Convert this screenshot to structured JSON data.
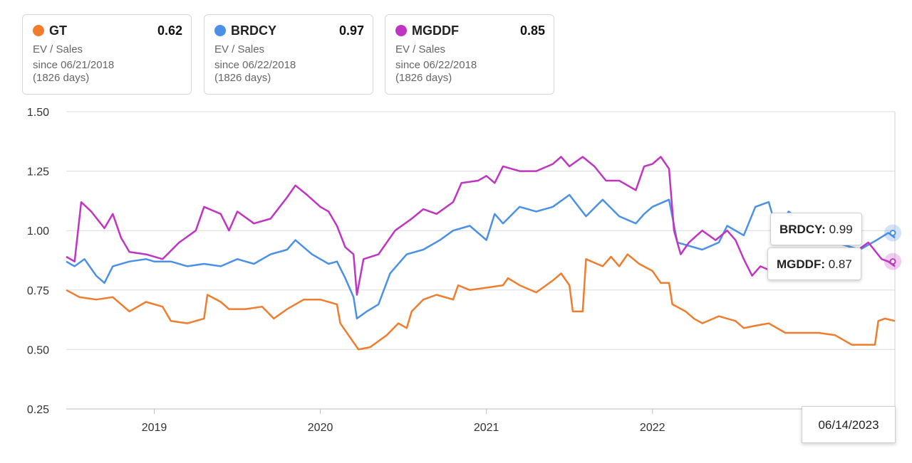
{
  "cards": [
    {
      "ticker": "GT",
      "value": "0.62",
      "metric": "EV / Sales",
      "since": "since 06/21/2018",
      "days": "(1826 days)",
      "color": "#EF7D2D"
    },
    {
      "ticker": "BRDCY",
      "value": "0.97",
      "metric": "EV / Sales",
      "since": "since 06/22/2018",
      "days": "(1826 days)",
      "color": "#4A90E8"
    },
    {
      "ticker": "MGDDF",
      "value": "0.85",
      "metric": "EV / Sales",
      "since": "since 06/22/2018",
      "days": "(1826 days)",
      "color": "#C034C3"
    }
  ],
  "tooltip": {
    "brdcy_label": "BRDCY:",
    "brdcy_value": "0.99",
    "mgddf_label": "MGDDF:",
    "mgddf_value": "0.87",
    "date": "06/14/2023"
  },
  "chart_data": {
    "type": "line",
    "ylim": [
      0.25,
      1.5
    ],
    "yticks": [
      "1.50",
      "1.25",
      "1.00",
      "0.75",
      "0.50",
      "0.25"
    ],
    "ytick_values": [
      1.5,
      1.25,
      1.0,
      0.75,
      0.5,
      0.25
    ],
    "xlim": [
      2018.47,
      2023.46
    ],
    "xticks": [
      "2019",
      "2020",
      "2021",
      "2022"
    ],
    "xtick_values": [
      2019,
      2020,
      2021,
      2022
    ],
    "grid": true,
    "series": [
      {
        "name": "GT",
        "color": "#EF7D2D",
        "points": [
          [
            2018.47,
            0.75
          ],
          [
            2018.55,
            0.72
          ],
          [
            2018.65,
            0.71
          ],
          [
            2018.75,
            0.72
          ],
          [
            2018.85,
            0.66
          ],
          [
            2018.95,
            0.7
          ],
          [
            2019.05,
            0.68
          ],
          [
            2019.1,
            0.62
          ],
          [
            2019.2,
            0.61
          ],
          [
            2019.3,
            0.63
          ],
          [
            2019.32,
            0.73
          ],
          [
            2019.4,
            0.7
          ],
          [
            2019.45,
            0.67
          ],
          [
            2019.55,
            0.67
          ],
          [
            2019.65,
            0.68
          ],
          [
            2019.72,
            0.63
          ],
          [
            2019.8,
            0.67
          ],
          [
            2019.9,
            0.71
          ],
          [
            2020.0,
            0.71
          ],
          [
            2020.1,
            0.69
          ],
          [
            2020.12,
            0.61
          ],
          [
            2020.18,
            0.55
          ],
          [
            2020.23,
            0.5
          ],
          [
            2020.3,
            0.51
          ],
          [
            2020.4,
            0.56
          ],
          [
            2020.47,
            0.61
          ],
          [
            2020.52,
            0.59
          ],
          [
            2020.55,
            0.66
          ],
          [
            2020.62,
            0.71
          ],
          [
            2020.7,
            0.73
          ],
          [
            2020.8,
            0.71
          ],
          [
            2020.83,
            0.77
          ],
          [
            2020.9,
            0.75
          ],
          [
            2021.0,
            0.76
          ],
          [
            2021.1,
            0.77
          ],
          [
            2021.13,
            0.8
          ],
          [
            2021.2,
            0.77
          ],
          [
            2021.3,
            0.74
          ],
          [
            2021.4,
            0.79
          ],
          [
            2021.45,
            0.82
          ],
          [
            2021.5,
            0.77
          ],
          [
            2021.52,
            0.66
          ],
          [
            2021.58,
            0.66
          ],
          [
            2021.6,
            0.88
          ],
          [
            2021.7,
            0.85
          ],
          [
            2021.75,
            0.89
          ],
          [
            2021.8,
            0.85
          ],
          [
            2021.85,
            0.9
          ],
          [
            2021.92,
            0.86
          ],
          [
            2022.0,
            0.83
          ],
          [
            2022.05,
            0.78
          ],
          [
            2022.1,
            0.78
          ],
          [
            2022.12,
            0.69
          ],
          [
            2022.2,
            0.66
          ],
          [
            2022.25,
            0.63
          ],
          [
            2022.3,
            0.61
          ],
          [
            2022.4,
            0.64
          ],
          [
            2022.5,
            0.62
          ],
          [
            2022.55,
            0.59
          ],
          [
            2022.62,
            0.6
          ],
          [
            2022.7,
            0.61
          ],
          [
            2022.8,
            0.57
          ],
          [
            2022.9,
            0.57
          ],
          [
            2023.0,
            0.57
          ],
          [
            2023.1,
            0.56
          ],
          [
            2023.2,
            0.52
          ],
          [
            2023.3,
            0.52
          ],
          [
            2023.34,
            0.52
          ],
          [
            2023.36,
            0.62
          ],
          [
            2023.4,
            0.63
          ],
          [
            2023.46,
            0.62
          ]
        ]
      },
      {
        "name": "BRDCY",
        "color": "#4A90E8",
        "points": [
          [
            2018.47,
            0.87
          ],
          [
            2018.52,
            0.85
          ],
          [
            2018.58,
            0.88
          ],
          [
            2018.65,
            0.81
          ],
          [
            2018.7,
            0.78
          ],
          [
            2018.75,
            0.85
          ],
          [
            2018.85,
            0.87
          ],
          [
            2018.95,
            0.88
          ],
          [
            2019.0,
            0.87
          ],
          [
            2019.1,
            0.87
          ],
          [
            2019.2,
            0.85
          ],
          [
            2019.3,
            0.86
          ],
          [
            2019.4,
            0.85
          ],
          [
            2019.5,
            0.88
          ],
          [
            2019.6,
            0.86
          ],
          [
            2019.7,
            0.9
          ],
          [
            2019.8,
            0.92
          ],
          [
            2019.85,
            0.96
          ],
          [
            2019.95,
            0.9
          ],
          [
            2020.05,
            0.86
          ],
          [
            2020.1,
            0.87
          ],
          [
            2020.15,
            0.8
          ],
          [
            2020.2,
            0.72
          ],
          [
            2020.22,
            0.63
          ],
          [
            2020.28,
            0.66
          ],
          [
            2020.35,
            0.69
          ],
          [
            2020.42,
            0.82
          ],
          [
            2020.52,
            0.9
          ],
          [
            2020.62,
            0.92
          ],
          [
            2020.72,
            0.96
          ],
          [
            2020.8,
            1.0
          ],
          [
            2020.9,
            1.02
          ],
          [
            2021.0,
            0.96
          ],
          [
            2021.05,
            1.07
          ],
          [
            2021.1,
            1.03
          ],
          [
            2021.2,
            1.1
          ],
          [
            2021.3,
            1.08
          ],
          [
            2021.4,
            1.1
          ],
          [
            2021.5,
            1.15
          ],
          [
            2021.6,
            1.06
          ],
          [
            2021.7,
            1.13
          ],
          [
            2021.8,
            1.06
          ],
          [
            2021.9,
            1.03
          ],
          [
            2021.95,
            1.07
          ],
          [
            2022.0,
            1.1
          ],
          [
            2022.1,
            1.13
          ],
          [
            2022.15,
            0.95
          ],
          [
            2022.2,
            0.94
          ],
          [
            2022.3,
            0.92
          ],
          [
            2022.4,
            0.95
          ],
          [
            2022.45,
            1.02
          ],
          [
            2022.55,
            0.98
          ],
          [
            2022.62,
            1.1
          ],
          [
            2022.7,
            1.12
          ],
          [
            2022.75,
            1.0
          ],
          [
            2022.82,
            1.08
          ],
          [
            2022.88,
            1.05
          ],
          [
            2023.0,
            0.95
          ],
          [
            2023.1,
            0.95
          ],
          [
            2023.25,
            0.92
          ],
          [
            2023.35,
            0.96
          ],
          [
            2023.42,
            0.99
          ],
          [
            2023.46,
            0.97
          ]
        ]
      },
      {
        "name": "MGDDF",
        "color": "#C034C3",
        "points": [
          [
            2018.47,
            0.89
          ],
          [
            2018.52,
            0.87
          ],
          [
            2018.56,
            1.12
          ],
          [
            2018.62,
            1.08
          ],
          [
            2018.7,
            1.01
          ],
          [
            2018.75,
            1.07
          ],
          [
            2018.8,
            0.97
          ],
          [
            2018.85,
            0.91
          ],
          [
            2018.95,
            0.9
          ],
          [
            2019.05,
            0.88
          ],
          [
            2019.15,
            0.95
          ],
          [
            2019.25,
            1.0
          ],
          [
            2019.3,
            1.1
          ],
          [
            2019.4,
            1.07
          ],
          [
            2019.45,
            1.0
          ],
          [
            2019.5,
            1.08
          ],
          [
            2019.6,
            1.03
          ],
          [
            2019.7,
            1.05
          ],
          [
            2019.8,
            1.14
          ],
          [
            2019.85,
            1.19
          ],
          [
            2019.92,
            1.15
          ],
          [
            2020.0,
            1.1
          ],
          [
            2020.05,
            1.08
          ],
          [
            2020.1,
            1.02
          ],
          [
            2020.15,
            0.93
          ],
          [
            2020.2,
            0.9
          ],
          [
            2020.22,
            0.73
          ],
          [
            2020.26,
            0.88
          ],
          [
            2020.35,
            0.9
          ],
          [
            2020.45,
            1.0
          ],
          [
            2020.55,
            1.05
          ],
          [
            2020.62,
            1.09
          ],
          [
            2020.7,
            1.07
          ],
          [
            2020.8,
            1.12
          ],
          [
            2020.85,
            1.2
          ],
          [
            2020.95,
            1.21
          ],
          [
            2021.0,
            1.23
          ],
          [
            2021.05,
            1.2
          ],
          [
            2021.1,
            1.27
          ],
          [
            2021.2,
            1.25
          ],
          [
            2021.3,
            1.25
          ],
          [
            2021.4,
            1.28
          ],
          [
            2021.45,
            1.31
          ],
          [
            2021.5,
            1.27
          ],
          [
            2021.58,
            1.31
          ],
          [
            2021.65,
            1.27
          ],
          [
            2021.72,
            1.21
          ],
          [
            2021.8,
            1.21
          ],
          [
            2021.9,
            1.17
          ],
          [
            2021.95,
            1.27
          ],
          [
            2022.0,
            1.28
          ],
          [
            2022.05,
            1.31
          ],
          [
            2022.1,
            1.26
          ],
          [
            2022.13,
            1.0
          ],
          [
            2022.17,
            0.9
          ],
          [
            2022.22,
            0.95
          ],
          [
            2022.3,
            1.0
          ],
          [
            2022.38,
            0.96
          ],
          [
            2022.45,
            1.0
          ],
          [
            2022.5,
            0.96
          ],
          [
            2022.55,
            0.88
          ],
          [
            2022.6,
            0.81
          ],
          [
            2022.65,
            0.85
          ],
          [
            2022.75,
            0.82
          ],
          [
            2022.85,
            0.85
          ],
          [
            2022.95,
            0.9
          ],
          [
            2023.05,
            0.88
          ],
          [
            2023.2,
            0.9
          ],
          [
            2023.3,
            0.95
          ],
          [
            2023.38,
            0.88
          ],
          [
            2023.42,
            0.87
          ],
          [
            2023.46,
            0.85
          ]
        ]
      }
    ]
  }
}
